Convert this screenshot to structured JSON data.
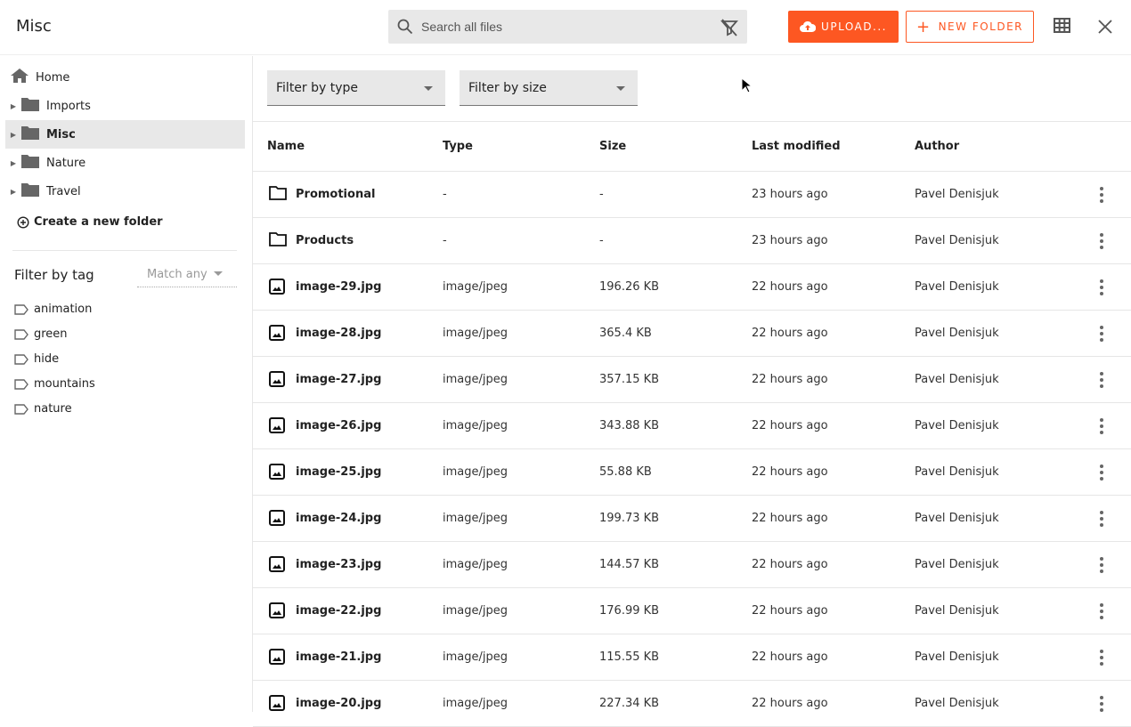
{
  "header": {
    "title": "Misc",
    "search_placeholder": "Search all files",
    "upload_label": "UPLOAD...",
    "new_folder_label": "NEW FOLDER",
    "accent": "#fd5722"
  },
  "sidebar": {
    "tree": [
      {
        "label": "Home",
        "icon": "home-icon"
      },
      {
        "label": "Imports",
        "icon": "folder-icon"
      },
      {
        "label": "Misc",
        "icon": "folder-icon",
        "selected": true
      },
      {
        "label": "Nature",
        "icon": "folder-icon"
      },
      {
        "label": "Travel",
        "icon": "folder-icon"
      }
    ],
    "create_folder": "Create a new folder",
    "filter_by_tag": "Filter by tag",
    "match_select": "Match any",
    "tags": [
      "animation",
      "green",
      "hide",
      "mountains",
      "nature"
    ]
  },
  "filters": {
    "type": "Filter by type",
    "size": "Filter by size"
  },
  "table": {
    "headers": [
      "Name",
      "Type",
      "Size",
      "Last modified",
      "Author"
    ],
    "rows": [
      {
        "name": "Promotional",
        "type": "-",
        "size": "-",
        "modified": "23 hours ago",
        "author": "Pavel Denisjuk",
        "kind": "folder"
      },
      {
        "name": "Products",
        "type": "-",
        "size": "-",
        "modified": "23 hours ago",
        "author": "Pavel Denisjuk",
        "kind": "folder"
      },
      {
        "name": "image-29.jpg",
        "type": "image/jpeg",
        "size": "196.26 KB",
        "modified": "22 hours ago",
        "author": "Pavel Denisjuk",
        "kind": "image"
      },
      {
        "name": "image-28.jpg",
        "type": "image/jpeg",
        "size": "365.4 KB",
        "modified": "22 hours ago",
        "author": "Pavel Denisjuk",
        "kind": "image"
      },
      {
        "name": "image-27.jpg",
        "type": "image/jpeg",
        "size": "357.15 KB",
        "modified": "22 hours ago",
        "author": "Pavel Denisjuk",
        "kind": "image"
      },
      {
        "name": "image-26.jpg",
        "type": "image/jpeg",
        "size": "343.88 KB",
        "modified": "22 hours ago",
        "author": "Pavel Denisjuk",
        "kind": "image"
      },
      {
        "name": "image-25.jpg",
        "type": "image/jpeg",
        "size": "55.88 KB",
        "modified": "22 hours ago",
        "author": "Pavel Denisjuk",
        "kind": "image"
      },
      {
        "name": "image-24.jpg",
        "type": "image/jpeg",
        "size": "199.73 KB",
        "modified": "22 hours ago",
        "author": "Pavel Denisjuk",
        "kind": "image"
      },
      {
        "name": "image-23.jpg",
        "type": "image/jpeg",
        "size": "144.57 KB",
        "modified": "22 hours ago",
        "author": "Pavel Denisjuk",
        "kind": "image"
      },
      {
        "name": "image-22.jpg",
        "type": "image/jpeg",
        "size": "176.99 KB",
        "modified": "22 hours ago",
        "author": "Pavel Denisjuk",
        "kind": "image"
      },
      {
        "name": "image-21.jpg",
        "type": "image/jpeg",
        "size": "115.55 KB",
        "modified": "22 hours ago",
        "author": "Pavel Denisjuk",
        "kind": "image"
      },
      {
        "name": "image-20.jpg",
        "type": "image/jpeg",
        "size": "227.34 KB",
        "modified": "22 hours ago",
        "author": "Pavel Denisjuk",
        "kind": "image"
      }
    ]
  }
}
